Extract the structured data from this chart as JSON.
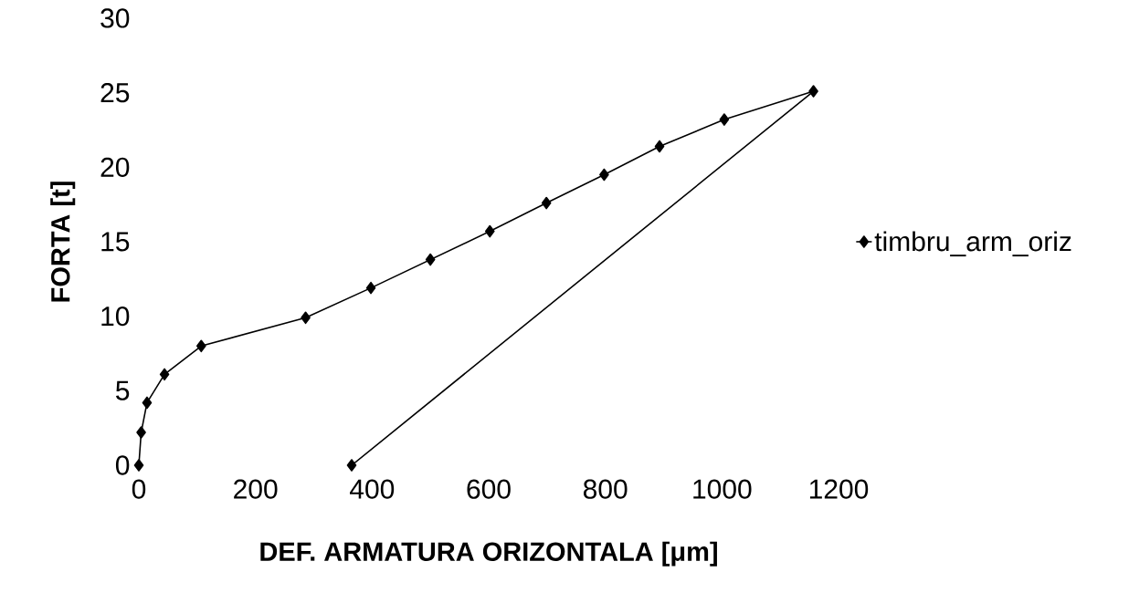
{
  "chart_data": {
    "type": "line",
    "xlabel": "DEF. ARMATURA ORIZONTALA [μm]",
    "ylabel": "FORTA [t]",
    "x": [
      0,
      4,
      14,
      44,
      107,
      286,
      398,
      500,
      602,
      699,
      798,
      893,
      1004,
      1157,
      365
    ],
    "series": [
      {
        "name": "timbru_arm_oriz",
        "color": "#000000",
        "values": [
          0,
          2.2,
          4.2,
          6.1,
          8.0,
          9.9,
          11.9,
          13.8,
          15.7,
          17.6,
          19.5,
          21.4,
          23.2,
          25.1,
          0
        ]
      }
    ],
    "xlim": [
      0,
      1200
    ],
    "ylim": [
      0,
      30
    ],
    "xticks": [
      0,
      200,
      400,
      600,
      800,
      1000,
      1200
    ],
    "yticks": [
      0,
      5,
      10,
      15,
      20,
      25,
      30
    ],
    "grid": false,
    "legend": "right",
    "marker": "diamond",
    "line_style": "solid"
  }
}
